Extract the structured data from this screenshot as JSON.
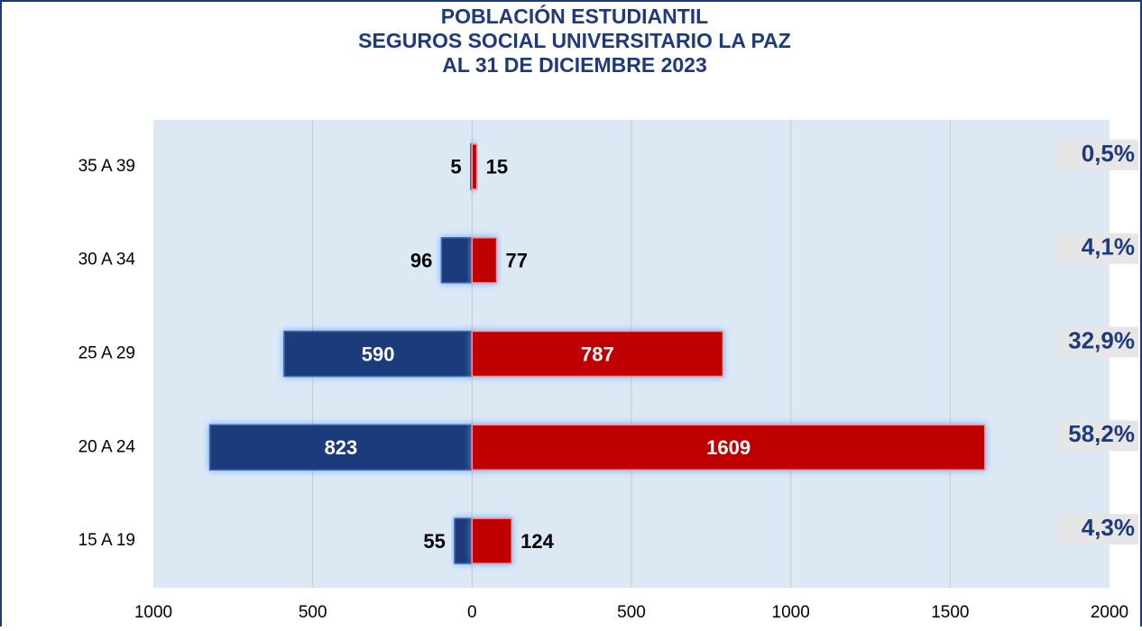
{
  "chart_data": {
    "type": "pyramid",
    "title": [
      "POBLACIÓN ESTUDIANTIL",
      "SEGUROS SOCIAL UNIVERSITARIO LA PAZ",
      "AL 31 DE DICIEMBRE 2023"
    ],
    "categories": [
      "15 A 19",
      "20 A 24",
      "25 A 29",
      "30 A 34",
      "35 A 39"
    ],
    "series": [
      {
        "color": "#1f3a7a",
        "values": [
          -55,
          -823,
          -590,
          -96,
          -5
        ],
        "value_labels": [
          "55",
          "823",
          "590",
          "96",
          "5"
        ]
      },
      {
        "color": "#c00000",
        "values": [
          124,
          1609,
          787,
          77,
          15
        ]
      }
    ],
    "annotations": [
      "4,3%",
      "58,2%",
      "32,9%",
      "4,1%",
      "0,5%"
    ],
    "xlim": [
      -1000,
      2000
    ],
    "xticks": [
      {
        "value": -1000,
        "label": "1000"
      },
      {
        "value": -500,
        "label": "500"
      },
      0,
      500,
      1000,
      1500,
      2000
    ],
    "grid": true
  }
}
